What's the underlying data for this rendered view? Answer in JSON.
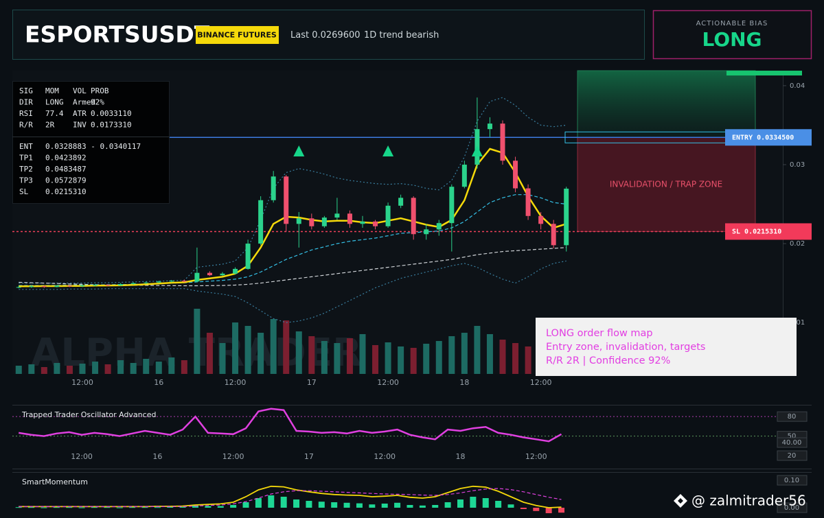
{
  "header": {
    "symbol": "ESPORTSUSDT",
    "exchange": "BINANCE FUTURES",
    "last": "Last 0.0269600",
    "trend": "1D trend bearish"
  },
  "bias": {
    "label": "ACTIONABLE BIAS",
    "value": "LONG"
  },
  "info_table": {
    "rows": [
      [
        "SIG",
        "MOM",
        "VOL",
        "PROB"
      ],
      [
        "DIR",
        "LONG",
        "Armed",
        "92%"
      ],
      [
        "RSI",
        "77.4",
        "ATR",
        "0.0033110"
      ],
      [
        "R/R",
        "2R",
        "INV",
        "0.0173310"
      ]
    ],
    "levels": [
      [
        "ENT",
        "0.0328883 - 0.0340117"
      ],
      [
        "TP1",
        "0.0423892"
      ],
      [
        "TP2",
        "0.0483487"
      ],
      [
        "TP3",
        "0.0572879"
      ],
      [
        "SL",
        "0.0215310"
      ]
    ]
  },
  "note": [
    "LONG order flow map",
    "Entry zone, invalidation, targets",
    "R/R 2R | Confidence 92%"
  ],
  "watermarks": {
    "brand": "ALPHA TRADER",
    "handle": "@ zalmitrader56"
  },
  "chart_data": [
    {
      "type": "candlestick",
      "x": [
        2,
        4,
        6,
        8,
        10,
        12,
        14,
        16,
        18,
        20,
        22,
        24,
        26,
        28,
        30,
        32,
        34,
        36,
        38,
        40,
        42,
        44,
        46,
        48,
        50,
        52,
        54,
        56,
        58,
        60,
        62,
        64,
        66,
        68,
        70,
        72,
        74,
        76,
        78,
        80,
        82,
        84,
        86,
        88
      ],
      "open": [
        0.01445,
        0.0145,
        0.0146,
        0.01452,
        0.01468,
        0.0146,
        0.0147,
        0.01478,
        0.0147,
        0.01488,
        0.015,
        0.01508,
        0.0152,
        0.0153,
        0.0152,
        0.0163,
        0.016,
        0.0162,
        0.0168,
        0.02,
        0.0255,
        0.0285,
        0.0225,
        0.0232,
        0.0222,
        0.0233,
        0.0238,
        0.0225,
        0.0228,
        0.0222,
        0.0248,
        0.0258,
        0.0212,
        0.0218,
        0.0226,
        0.0272,
        0.03,
        0.0345,
        0.0352,
        0.0305,
        0.027,
        0.0235,
        0.0225,
        0.0198
      ],
      "high": [
        0.01465,
        0.0147,
        0.0147,
        0.01475,
        0.01475,
        0.0148,
        0.0149,
        0.01485,
        0.015,
        0.0151,
        0.0152,
        0.0153,
        0.0154,
        0.01545,
        0.0195,
        0.0165,
        0.0164,
        0.017,
        0.0205,
        0.026,
        0.0292,
        0.0287,
        0.024,
        0.0238,
        0.0235,
        0.0258,
        0.0242,
        0.0235,
        0.023,
        0.0252,
        0.0262,
        0.026,
        0.0225,
        0.023,
        0.0275,
        0.0305,
        0.0385,
        0.036,
        0.0356,
        0.031,
        0.0275,
        0.024,
        0.023,
        0.0272
      ],
      "low": [
        0.01435,
        0.0144,
        0.0144,
        0.01445,
        0.0145,
        0.0145,
        0.0146,
        0.0146,
        0.01465,
        0.0148,
        0.0149,
        0.015,
        0.0151,
        0.0151,
        0.0151,
        0.0159,
        0.0159,
        0.0161,
        0.0167,
        0.0198,
        0.0252,
        0.0215,
        0.0195,
        0.0218,
        0.022,
        0.023,
        0.022,
        0.022,
        0.0218,
        0.022,
        0.0245,
        0.0205,
        0.0205,
        0.021,
        0.019,
        0.027,
        0.0295,
        0.0335,
        0.03,
        0.0265,
        0.023,
        0.0218,
        0.0194,
        0.019
      ],
      "close": [
        0.0145,
        0.0146,
        0.01452,
        0.01468,
        0.0146,
        0.0147,
        0.01478,
        0.0147,
        0.01488,
        0.015,
        0.01508,
        0.0152,
        0.0153,
        0.0152,
        0.0163,
        0.016,
        0.0162,
        0.0168,
        0.02,
        0.0255,
        0.0285,
        0.0225,
        0.0232,
        0.0222,
        0.0233,
        0.0238,
        0.0225,
        0.0228,
        0.0222,
        0.0248,
        0.0258,
        0.0212,
        0.0218,
        0.0226,
        0.0272,
        0.03,
        0.0345,
        0.0352,
        0.0305,
        0.027,
        0.0235,
        0.0225,
        0.0198,
        0.02696
      ],
      "volume": [
        12,
        14,
        10,
        16,
        12,
        15,
        18,
        14,
        20,
        16,
        22,
        18,
        24,
        20,
        95,
        60,
        45,
        75,
        70,
        60,
        80,
        78,
        62,
        55,
        48,
        45,
        52,
        58,
        42,
        46,
        40,
        38,
        44,
        48,
        55,
        60,
        70,
        58,
        50,
        45,
        40,
        38,
        35,
        30
      ],
      "colors": {
        "up": "#2bd38c",
        "down": "#f0506e",
        "volume_up": "#1d6b63",
        "volume_down": "#7c1f30"
      },
      "overlays": [
        {
          "color": "#3a7fa0",
          "dash": "dotted",
          "values": [
            0.015,
            0.015,
            0.015,
            0.015,
            0.015,
            0.015,
            0.01505,
            0.01505,
            0.0151,
            0.01515,
            0.0152,
            0.01525,
            0.0153,
            0.01535,
            0.017,
            0.0172,
            0.0174,
            0.0178,
            0.0195,
            0.023,
            0.027,
            0.029,
            0.0295,
            0.0292,
            0.0288,
            0.0283,
            0.028,
            0.0278,
            0.0276,
            0.0275,
            0.0276,
            0.0274,
            0.027,
            0.0268,
            0.028,
            0.031,
            0.0355,
            0.038,
            0.0385,
            0.0375,
            0.036,
            0.035,
            0.0348,
            0.035
          ]
        },
        {
          "color": "#3a7fa0",
          "dash": "dotted",
          "values": [
            0.0142,
            0.0142,
            0.0142,
            0.0142,
            0.01425,
            0.01425,
            0.01425,
            0.0143,
            0.0143,
            0.0143,
            0.0143,
            0.0143,
            0.0143,
            0.0143,
            0.014,
            0.0138,
            0.0136,
            0.0133,
            0.0125,
            0.0115,
            0.0105,
            0.01,
            0.0102,
            0.0106,
            0.0112,
            0.012,
            0.0128,
            0.0136,
            0.0144,
            0.015,
            0.0156,
            0.016,
            0.0164,
            0.0168,
            0.0172,
            0.0175,
            0.017,
            0.0162,
            0.0155,
            0.015,
            0.0158,
            0.0168,
            0.0175,
            0.0178
          ]
        },
        {
          "color": "#d0d4d8",
          "dash": "dashed",
          "values": [
            0.0151,
            0.01505,
            0.015,
            0.01495,
            0.0149,
            0.01485,
            0.0148,
            0.01478,
            0.01476,
            0.01474,
            0.01472,
            0.0147,
            0.01468,
            0.01466,
            0.01466,
            0.01468,
            0.0147,
            0.01475,
            0.01485,
            0.015,
            0.0152,
            0.0154,
            0.0156,
            0.0158,
            0.016,
            0.0162,
            0.0164,
            0.0166,
            0.0168,
            0.017,
            0.0172,
            0.0174,
            0.0176,
            0.0178,
            0.018,
            0.0183,
            0.0186,
            0.0188,
            0.019,
            0.0191,
            0.0192,
            0.0193,
            0.0194,
            0.0195
          ]
        },
        {
          "color": "#35c2e8",
          "dash": "dashed",
          "values": [
            0.0147,
            0.0147,
            0.0147,
            0.01472,
            0.01474,
            0.01476,
            0.01478,
            0.0148,
            0.01482,
            0.01485,
            0.0149,
            0.01495,
            0.015,
            0.01505,
            0.01515,
            0.01525,
            0.01535,
            0.0155,
            0.0158,
            0.0164,
            0.0172,
            0.018,
            0.0186,
            0.0192,
            0.0196,
            0.02,
            0.0203,
            0.0205,
            0.0207,
            0.021,
            0.0213,
            0.0214,
            0.0215,
            0.0216,
            0.022,
            0.0228,
            0.024,
            0.0252,
            0.0258,
            0.0262,
            0.0262,
            0.0258,
            0.0252,
            0.025
          ]
        },
        {
          "color": "#f5d90a",
          "dash": "solid",
          "values": [
            0.0146,
            0.0146,
            0.01462,
            0.01462,
            0.01464,
            0.01465,
            0.01468,
            0.0147,
            0.01472,
            0.01478,
            0.01485,
            0.01495,
            0.01505,
            0.0151,
            0.0154,
            0.0156,
            0.0158,
            0.0162,
            0.0172,
            0.0195,
            0.0225,
            0.0234,
            0.0233,
            0.023,
            0.0228,
            0.0229,
            0.0229,
            0.0227,
            0.0226,
            0.0229,
            0.0232,
            0.0228,
            0.0224,
            0.0221,
            0.023,
            0.0255,
            0.03,
            0.032,
            0.0315,
            0.029,
            0.026,
            0.0235,
            0.022,
            0.0225
          ]
        }
      ],
      "xlim": [
        1,
        122
      ],
      "xticks": [
        {
          "value": 12,
          "label": "12:00"
        },
        {
          "value": 24,
          "label": "16"
        },
        {
          "value": 36,
          "label": "12:00"
        },
        {
          "value": 48,
          "label": "17"
        },
        {
          "value": 60,
          "label": "12:00"
        },
        {
          "value": 72,
          "label": "18"
        },
        {
          "value": 84,
          "label": "12:00"
        }
      ],
      "ylim": [
        0.0035,
        0.0419
      ],
      "yticks": [
        0.04,
        0.03,
        0.02,
        0.01
      ],
      "entry": {
        "value": 0.03345,
        "label": "ENTRY 0.0334500"
      },
      "stop": {
        "value": 0.021531,
        "label": "SL 0.0215310"
      },
      "zone_label": "INVALIDATION / TRAP ZONE",
      "signals": [
        46,
        60,
        74
      ],
      "signal_color": "#17d68a"
    },
    {
      "type": "line",
      "title": "Trapped Trader Oscillator Advanced",
      "color": "#e040e0",
      "x": [
        2,
        4,
        6,
        8,
        10,
        12,
        14,
        16,
        18,
        20,
        22,
        24,
        26,
        28,
        30,
        32,
        34,
        36,
        38,
        40,
        42,
        44,
        46,
        48,
        50,
        52,
        54,
        56,
        58,
        60,
        62,
        64,
        66,
        68,
        70,
        72,
        74,
        76,
        78,
        80,
        82,
        84,
        86,
        88
      ],
      "values": [
        55,
        52,
        50,
        54,
        56,
        52,
        55,
        53,
        50,
        54,
        58,
        55,
        52,
        60,
        80,
        55,
        54,
        53,
        62,
        88,
        92,
        90,
        58,
        57,
        55,
        56,
        54,
        58,
        55,
        57,
        60,
        52,
        48,
        45,
        60,
        58,
        62,
        64,
        55,
        52,
        48,
        45,
        42,
        53
      ],
      "xlim": [
        1,
        122
      ],
      "xticks": [
        {
          "value": 12,
          "label": "12:00"
        },
        {
          "value": 24,
          "label": "16"
        },
        {
          "value": 36,
          "label": "12:00"
        },
        {
          "value": 48,
          "label": "17"
        },
        {
          "value": 60,
          "label": "12:00"
        },
        {
          "value": 72,
          "label": "18"
        },
        {
          "value": 84,
          "label": "12:00"
        }
      ],
      "ylim": [
        0,
        96
      ],
      "yticks": [
        80,
        50,
        {
          "value": 40,
          "label": "40.00"
        },
        20
      ],
      "levels": [
        {
          "value": 80,
          "color": "#b03cb0"
        },
        {
          "value": 50,
          "color": "#5d9a5d"
        }
      ]
    },
    {
      "type": "bar",
      "title": "SmartMomentum",
      "colors": {
        "up": "#1ed795",
        "down": "#f0455e"
      },
      "x": [
        2,
        4,
        6,
        8,
        10,
        12,
        14,
        16,
        18,
        20,
        22,
        24,
        26,
        28,
        30,
        32,
        34,
        36,
        38,
        40,
        42,
        44,
        46,
        48,
        50,
        52,
        54,
        56,
        58,
        60,
        62,
        64,
        66,
        68,
        70,
        72,
        74,
        76,
        78,
        80,
        82,
        84,
        86,
        88
      ],
      "values": [
        0.002,
        0.002,
        0.001,
        0.002,
        0.002,
        0.001,
        0.002,
        0.002,
        0.001,
        0.002,
        0.002,
        0.002,
        0.003,
        0.003,
        0.008,
        0.006,
        0.006,
        0.01,
        0.02,
        0.035,
        0.045,
        0.04,
        0.03,
        0.025,
        0.022,
        0.02,
        0.018,
        0.016,
        0.012,
        0.015,
        0.018,
        0.01,
        0.008,
        0.01,
        0.02,
        0.03,
        0.04,
        0.035,
        0.025,
        0.012,
        -0.005,
        -0.012,
        -0.02,
        -0.018
      ],
      "overlays": [
        {
          "color": "#f5d90a",
          "dash": "solid",
          "values": [
            0.004,
            0.004,
            0.004,
            0.004,
            0.004,
            0.004,
            0.004,
            0.004,
            0.004,
            0.004,
            0.004,
            0.005,
            0.005,
            0.006,
            0.01,
            0.012,
            0.014,
            0.02,
            0.04,
            0.065,
            0.078,
            0.076,
            0.065,
            0.058,
            0.052,
            0.048,
            0.046,
            0.045,
            0.04,
            0.042,
            0.045,
            0.038,
            0.035,
            0.04,
            0.055,
            0.07,
            0.078,
            0.075,
            0.06,
            0.04,
            0.02,
            0.008,
            0,
            0.002
          ]
        },
        {
          "color": "#e040e0",
          "dash": "dashed",
          "values": [
            0.004,
            0.004,
            0.004,
            0.004,
            0.004,
            0.004,
            0.004,
            0.004,
            0.004,
            0.004,
            0.004,
            0.004,
            0.004,
            0.004,
            0.006,
            0.008,
            0.01,
            0.014,
            0.022,
            0.035,
            0.05,
            0.058,
            0.062,
            0.062,
            0.06,
            0.058,
            0.056,
            0.054,
            0.052,
            0.05,
            0.049,
            0.048,
            0.046,
            0.045,
            0.048,
            0.054,
            0.062,
            0.068,
            0.07,
            0.066,
            0.058,
            0.048,
            0.038,
            0.03
          ]
        }
      ],
      "xlim": [
        1,
        122
      ],
      "ylim": [
        -0.03,
        0.12
      ],
      "yticks": [
        {
          "value": 0.1,
          "label": "0.10"
        },
        {
          "value": 0,
          "label": "0.00"
        }
      ]
    }
  ]
}
